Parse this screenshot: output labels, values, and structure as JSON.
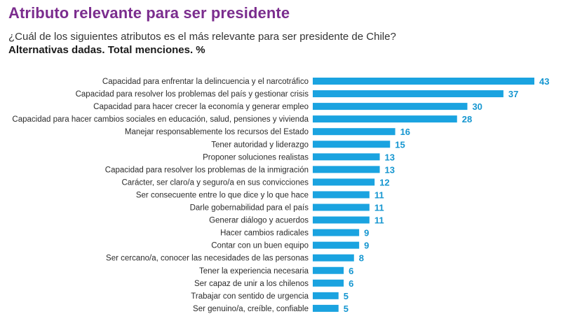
{
  "header": {
    "title": "Atributo relevante para ser presidente",
    "subtitle": "¿Cuál de los siguientes atributos es el más relevante para ser presidente de Chile?",
    "note": "Alternativas dadas. Total menciones. %"
  },
  "colors": {
    "title": "#7b2d8e",
    "bar": "#1aa3e0",
    "value_label": "#1596d0"
  },
  "chart_data": {
    "type": "bar",
    "orientation": "horizontal",
    "title": "Atributo relevante para ser presidente",
    "subtitle": "¿Cuál de los siguientes atributos es el más relevante para ser presidente de Chile?",
    "xlim": [
      0,
      43
    ],
    "grid": false,
    "categories": [
      "Capacidad para enfrentar la delincuencia y el narcotráfico",
      "Capacidad para resolver los problemas del país y gestionar crisis",
      "Capacidad para hacer crecer la economía y generar empleo",
      "Capacidad para hacer cambios sociales en educación, salud, pensiones y vivienda",
      "Manejar responsablemente los recursos del Estado",
      "Tener autoridad y liderazgo",
      "Proponer soluciones realistas",
      "Capacidad para resolver los problemas de la inmigración",
      "Carácter, ser claro/a y seguro/a en sus convicciones",
      "Ser consecuente entre lo que dice y lo que hace",
      "Darle gobernabilidad para el país",
      "Generar diálogo y acuerdos",
      "Hacer cambios radicales",
      "Contar con un buen equipo",
      "Ser cercano/a, conocer las necesidades de las personas",
      "Tener la experiencia necesaria",
      "Ser capaz de unir a los chilenos",
      "Trabajar con sentido de urgencia",
      "Ser genuino/a, creíble, confiable"
    ],
    "values": [
      43,
      37,
      30,
      28,
      16,
      15,
      13,
      13,
      12,
      11,
      11,
      11,
      9,
      9,
      8,
      6,
      6,
      5,
      5
    ]
  }
}
